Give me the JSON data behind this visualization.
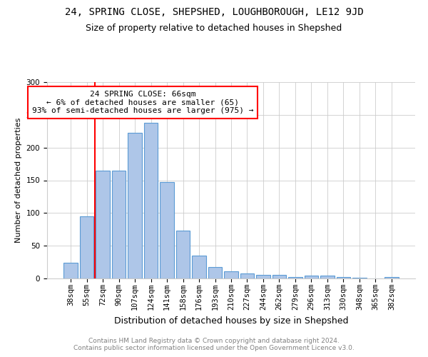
{
  "title": "24, SPRING CLOSE, SHEPSHED, LOUGHBOROUGH, LE12 9JD",
  "subtitle": "Size of property relative to detached houses in Shepshed",
  "xlabel": "Distribution of detached houses by size in Shepshed",
  "ylabel": "Number of detached properties",
  "categories": [
    "38sqm",
    "55sqm",
    "72sqm",
    "90sqm",
    "107sqm",
    "124sqm",
    "141sqm",
    "158sqm",
    "176sqm",
    "193sqm",
    "210sqm",
    "227sqm",
    "244sqm",
    "262sqm",
    "279sqm",
    "296sqm",
    "313sqm",
    "330sqm",
    "348sqm",
    "365sqm",
    "382sqm"
  ],
  "values": [
    24,
    95,
    165,
    165,
    222,
    238,
    147,
    73,
    35,
    18,
    11,
    8,
    5,
    5,
    2,
    4,
    4,
    2,
    1,
    0,
    2
  ],
  "bar_color": "#aec6e8",
  "bar_edge_color": "#5b9bd5",
  "vline_color": "red",
  "vline_pos": 1.5,
  "annotation_text": "24 SPRING CLOSE: 66sqm\n← 6% of detached houses are smaller (65)\n93% of semi-detached houses are larger (975) →",
  "annotation_box_color": "white",
  "annotation_box_edge": "red",
  "ylim": [
    0,
    300
  ],
  "yticks": [
    0,
    50,
    100,
    150,
    200,
    250,
    300
  ],
  "footnote": "Contains HM Land Registry data © Crown copyright and database right 2024.\nContains public sector information licensed under the Open Government Licence v3.0.",
  "title_fontsize": 10,
  "subtitle_fontsize": 9,
  "xlabel_fontsize": 9,
  "ylabel_fontsize": 8,
  "tick_fontsize": 7.5,
  "annotation_fontsize": 8,
  "footnote_fontsize": 6.5,
  "background_color": "#ffffff"
}
